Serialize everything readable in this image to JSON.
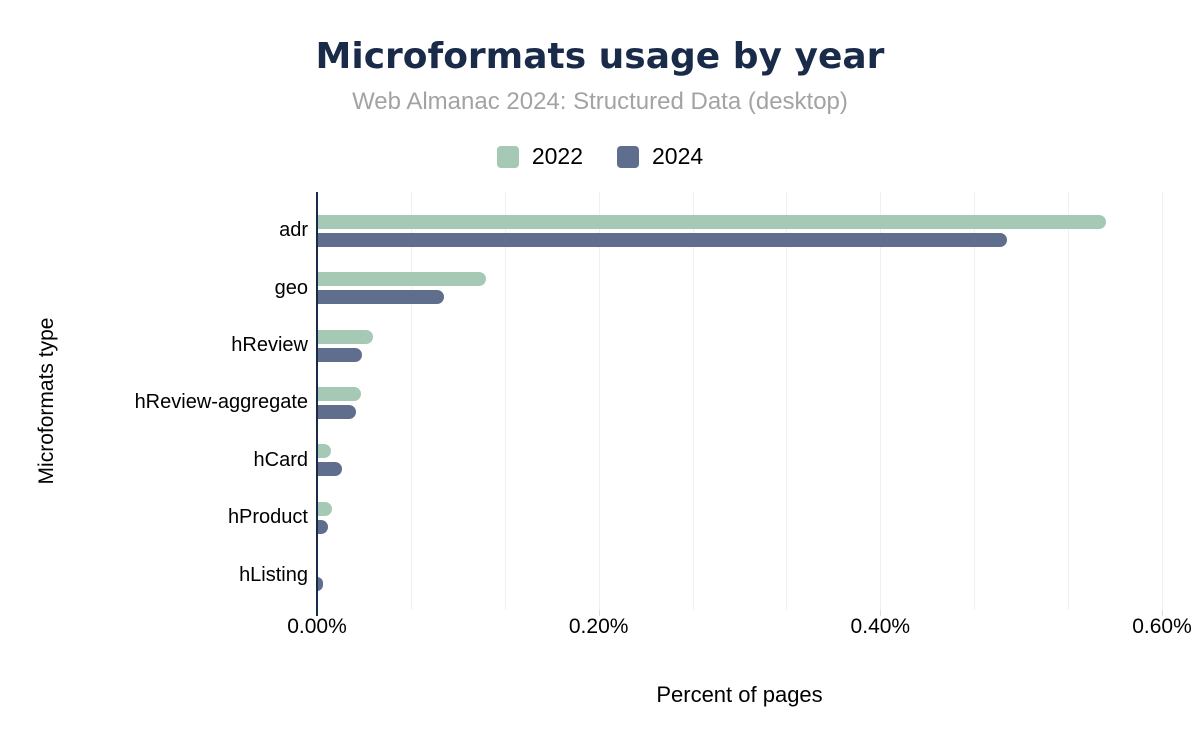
{
  "header": {
    "title": "Microformats usage by year",
    "subtitle": "Web Almanac 2024: Structured Data (desktop)"
  },
  "legend": {
    "items": [
      {
        "label": "2022",
        "color": "#a6c9b6"
      },
      {
        "label": "2024",
        "color": "#5f6e8c"
      }
    ]
  },
  "chart_data": {
    "type": "bar",
    "orientation": "horizontal",
    "title": "Microformats usage by year",
    "subtitle": "Web Almanac 2024: Structured Data (desktop)",
    "categories": [
      "adr",
      "geo",
      "hReview",
      "hReview-aggregate",
      "hCard",
      "hProduct",
      "hListing"
    ],
    "series": [
      {
        "name": "2022",
        "color": "#a6c9b6",
        "values": [
          0.56,
          0.12,
          0.04,
          0.031,
          0.01,
          0.011,
          0
        ]
      },
      {
        "name": "2024",
        "color": "#5f6e8c",
        "values": [
          0.49,
          0.09,
          0.032,
          0.028,
          0.018,
          0.008,
          0.004
        ]
      }
    ],
    "value_unit": "% of pages",
    "xlabel": "Percent of pages",
    "ylabel": "Microformats type",
    "xlim": [
      0,
      0.6
    ],
    "x_ticks": [
      {
        "value": 0.0,
        "label": "0.00%"
      },
      {
        "value": 0.2,
        "label": "0.20%"
      },
      {
        "value": 0.4,
        "label": "0.40%"
      },
      {
        "value": 0.6,
        "label": "0.60%"
      }
    ],
    "grid": true,
    "grid_divisions": 9,
    "legend_position": "top"
  },
  "colors": {
    "title": "#1a2b49",
    "subtitle": "#a3a3a3",
    "axis_line": "#1a2b49",
    "gridline": "#f0f0f0",
    "tick": "#dddddd",
    "text": "#000000",
    "background": "#ffffff"
  }
}
